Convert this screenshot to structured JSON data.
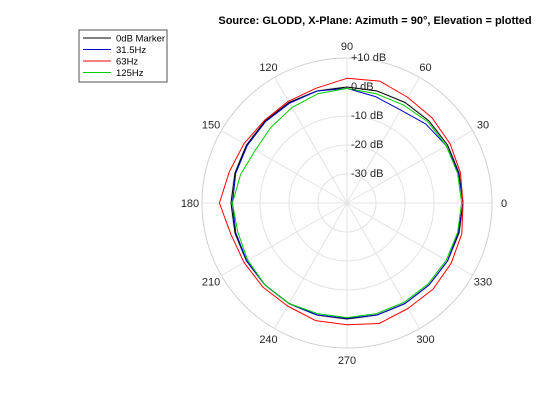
{
  "chart_data": {
    "type": "polar-line",
    "title": "Source: GLODD, X-Plane: Azimuth = 90°, Elevation = plotted",
    "angle_ticks": [
      "0",
      "30",
      "60",
      "90",
      "120",
      "150",
      "180",
      "210",
      "240",
      "270",
      "300",
      "330"
    ],
    "angle_tick_values_deg": [
      0,
      30,
      60,
      90,
      120,
      150,
      180,
      210,
      240,
      270,
      300,
      330
    ],
    "radial_ticks": [
      "-30 dB",
      "-20 dB",
      "-10 dB",
      "0 dB",
      "+10 dB"
    ],
    "radial_tick_values_db": [
      -30,
      -20,
      -10,
      0,
      10
    ],
    "rlim_db": [
      -40,
      10
    ],
    "grid": true,
    "legend_position": "top-left",
    "series": [
      {
        "name": "0dB Marker",
        "color": "#000000",
        "angles_deg": [
          0,
          15,
          30,
          45,
          60,
          75,
          90,
          105,
          120,
          135,
          150,
          165,
          180,
          195,
          210,
          225,
          240,
          255,
          270,
          285,
          300,
          315,
          330,
          345,
          360
        ],
        "values_db": [
          0,
          0,
          0,
          0,
          0,
          0,
          0,
          0,
          0,
          0,
          0,
          0,
          0,
          0,
          0,
          0,
          0,
          0,
          0,
          0,
          0,
          0,
          0,
          0,
          0
        ]
      },
      {
        "name": "31.5Hz",
        "color": "#0000cc",
        "angles_deg": [
          0,
          15,
          30,
          45,
          60,
          75,
          90,
          105,
          120,
          135,
          150,
          165,
          180,
          195,
          210,
          225,
          240,
          255,
          270,
          285,
          300,
          315,
          330,
          345,
          360
        ],
        "values_db": [
          0,
          -0.2,
          -0.5,
          -1.5,
          -3,
          -2,
          -0.5,
          0,
          -0.3,
          -0.3,
          -0.3,
          -0.3,
          -0.5,
          -0.3,
          -0.1,
          0,
          0,
          0,
          -0.2,
          0,
          0,
          0,
          0,
          -0.3,
          0
        ]
      },
      {
        "name": "63Hz",
        "color": "#ff0000",
        "angles_deg": [
          0,
          15,
          30,
          45,
          60,
          75,
          90,
          105,
          120,
          135,
          150,
          165,
          180,
          195,
          210,
          225,
          240,
          255,
          270,
          285,
          300,
          315,
          330,
          345,
          360
        ],
        "values_db": [
          0,
          0.5,
          1,
          1.5,
          2,
          3.5,
          3,
          1,
          0.5,
          0.3,
          1,
          2,
          4,
          1.5,
          1,
          1,
          1,
          2,
          2,
          3,
          2,
          2,
          1.5,
          1,
          0
        ]
      },
      {
        "name": "125Hz",
        "color": "#00cc00",
        "angles_deg": [
          0,
          15,
          30,
          45,
          60,
          75,
          90,
          105,
          120,
          135,
          150,
          165,
          180,
          195,
          210,
          225,
          240,
          255,
          270,
          285,
          300,
          315,
          330,
          345,
          360
        ],
        "values_db": [
          -0.5,
          -0.5,
          -0.5,
          -0.5,
          -1,
          -1,
          -0.5,
          -1,
          -2,
          -3,
          -3.5,
          -2,
          -0.5,
          -1,
          -0.5,
          0,
          0,
          -0.5,
          -0.5,
          -0.5,
          -0.5,
          -0.5,
          -0.5,
          -0.5,
          -0.5
        ]
      }
    ]
  }
}
